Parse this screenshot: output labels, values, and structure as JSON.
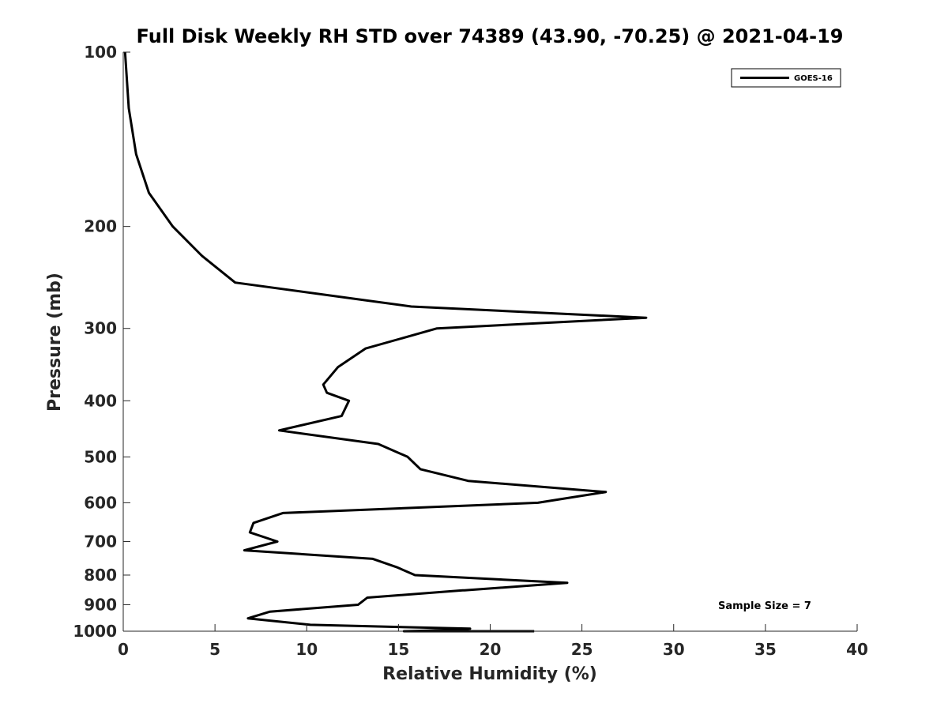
{
  "chart_data": {
    "type": "line",
    "title": "Full Disk Weekly RH STD over 74389 (43.90, -70.25) @ 2021-04-19",
    "xlabel": "Relative Humidity (%)",
    "ylabel": "Pressure (mb)",
    "xlim": [
      0,
      40
    ],
    "ylim": [
      100,
      1000
    ],
    "y_scale": "log",
    "y_reversed": true,
    "grid": false,
    "legend_position": "top-right",
    "x_ticks": [
      0,
      5,
      10,
      15,
      20,
      25,
      30,
      35,
      40
    ],
    "y_ticks": [
      100,
      200,
      300,
      400,
      500,
      600,
      700,
      800,
      900,
      1000
    ],
    "annotation": "Sample Size = 7",
    "series": [
      {
        "name": "GOES-16",
        "color": "#000000",
        "x": [
          0.1,
          0.3,
          0.7,
          1.4,
          2.7,
          4.3,
          6.1,
          15.7,
          28.5,
          17.1,
          13.2,
          11.7,
          10.9,
          11.1,
          12.3,
          11.9,
          8.5,
          13.9,
          15.5,
          16.2,
          18.8,
          26.3,
          22.6,
          8.7,
          7.1,
          6.9,
          8.4,
          6.6,
          13.6,
          14.9,
          15.9,
          24.2,
          18.6,
          18.5,
          13.3,
          12.8,
          8.0,
          6.8,
          10.2,
          18.9,
          18.1,
          15.3,
          22.4
        ],
        "y": [
          100,
          125,
          150,
          175,
          200,
          225,
          250,
          275,
          287.5,
          300,
          325,
          350,
          375,
          387.5,
          400,
          425,
          450,
          475,
          500,
          525,
          550,
          575,
          600,
          625,
          650,
          675,
          700,
          725,
          750,
          775,
          800,
          825,
          850,
          850,
          875,
          900,
          925,
          950,
          975,
          990,
          995,
          1005,
          1015
        ]
      }
    ]
  }
}
